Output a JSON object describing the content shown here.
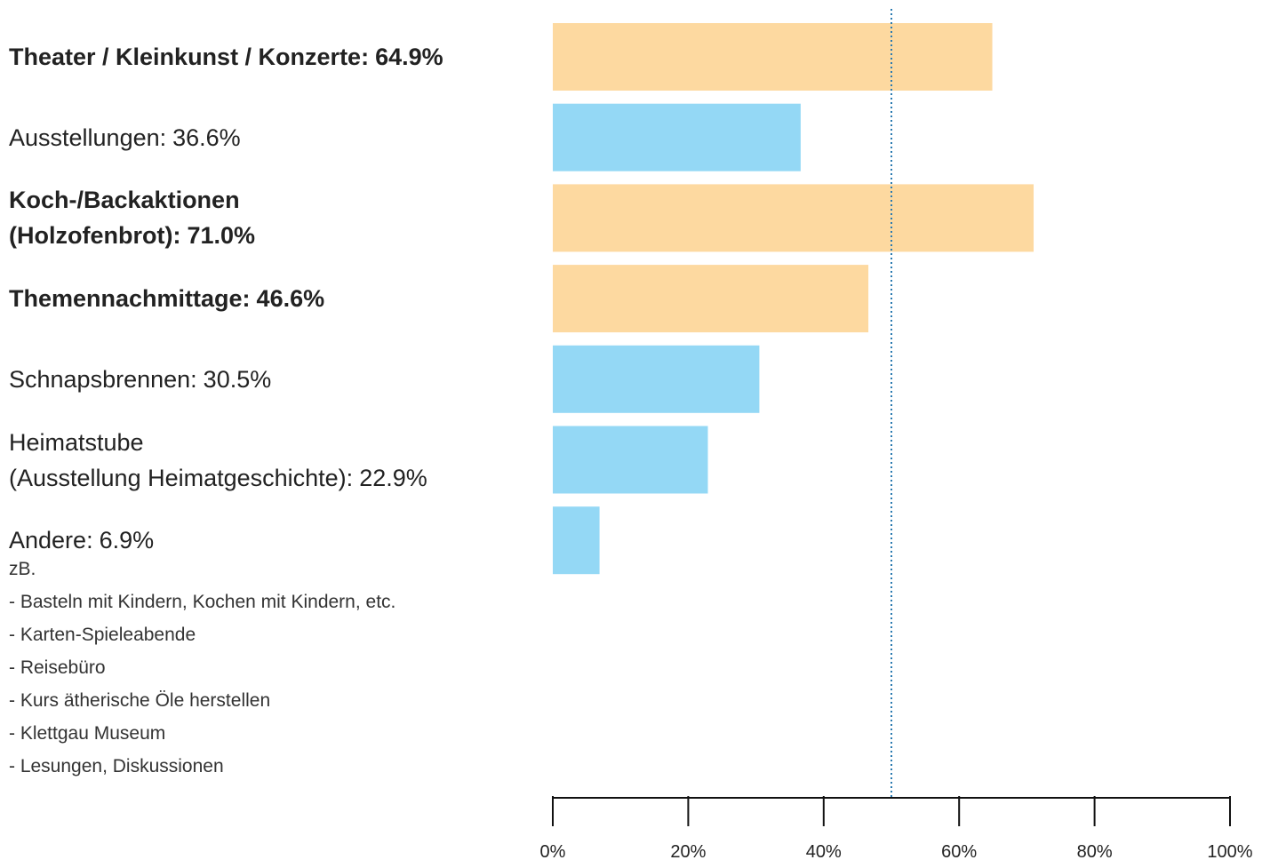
{
  "chart_data": {
    "type": "barh",
    "categories": [
      "Theater / Kleinkunst / Konzerte:",
      "Ausstellungen:",
      "Koch-/Backaktionen\n(Holzofenbrot):",
      "Themennachmittage:",
      "Schnapsbrennen:",
      "Heimatstube\n(Ausstellung Heimatgeschichte):",
      "Andere:"
    ],
    "values": [
      64.9,
      36.6,
      71.0,
      46.6,
      30.5,
      22.9,
      6.9
    ],
    "value_labels": [
      "64.9%",
      "36.6%",
      "71.0%",
      "46.6%",
      "30.5%",
      "22.9%",
      "6.9%"
    ],
    "highlighted": [
      true,
      false,
      true,
      true,
      false,
      false,
      false
    ],
    "color": "#94d8f5",
    "highlight_color": "#fdd9a0",
    "reference_line": 50,
    "reference_color": "#2a7ab0",
    "xlim": [
      0,
      100
    ],
    "xticks": [
      {
        "value": 0,
        "label": "0%"
      },
      {
        "value": 20,
        "label": "20%"
      },
      {
        "value": 40,
        "label": "40%"
      },
      {
        "value": 60,
        "label": "60%"
      },
      {
        "value": 80,
        "label": "80%"
      },
      {
        "value": 100,
        "label": "100%"
      }
    ],
    "note": {
      "intro": "zB.",
      "items": [
        "- Basteln mit Kindern, Kochen mit Kindern, etc.",
        "- Karten-Spieleabende",
        "- Reisebüro",
        "- Kurs ätherische Öle herstellen",
        "- Klettgau Museum",
        "- Lesungen, Diskussionen"
      ]
    }
  }
}
